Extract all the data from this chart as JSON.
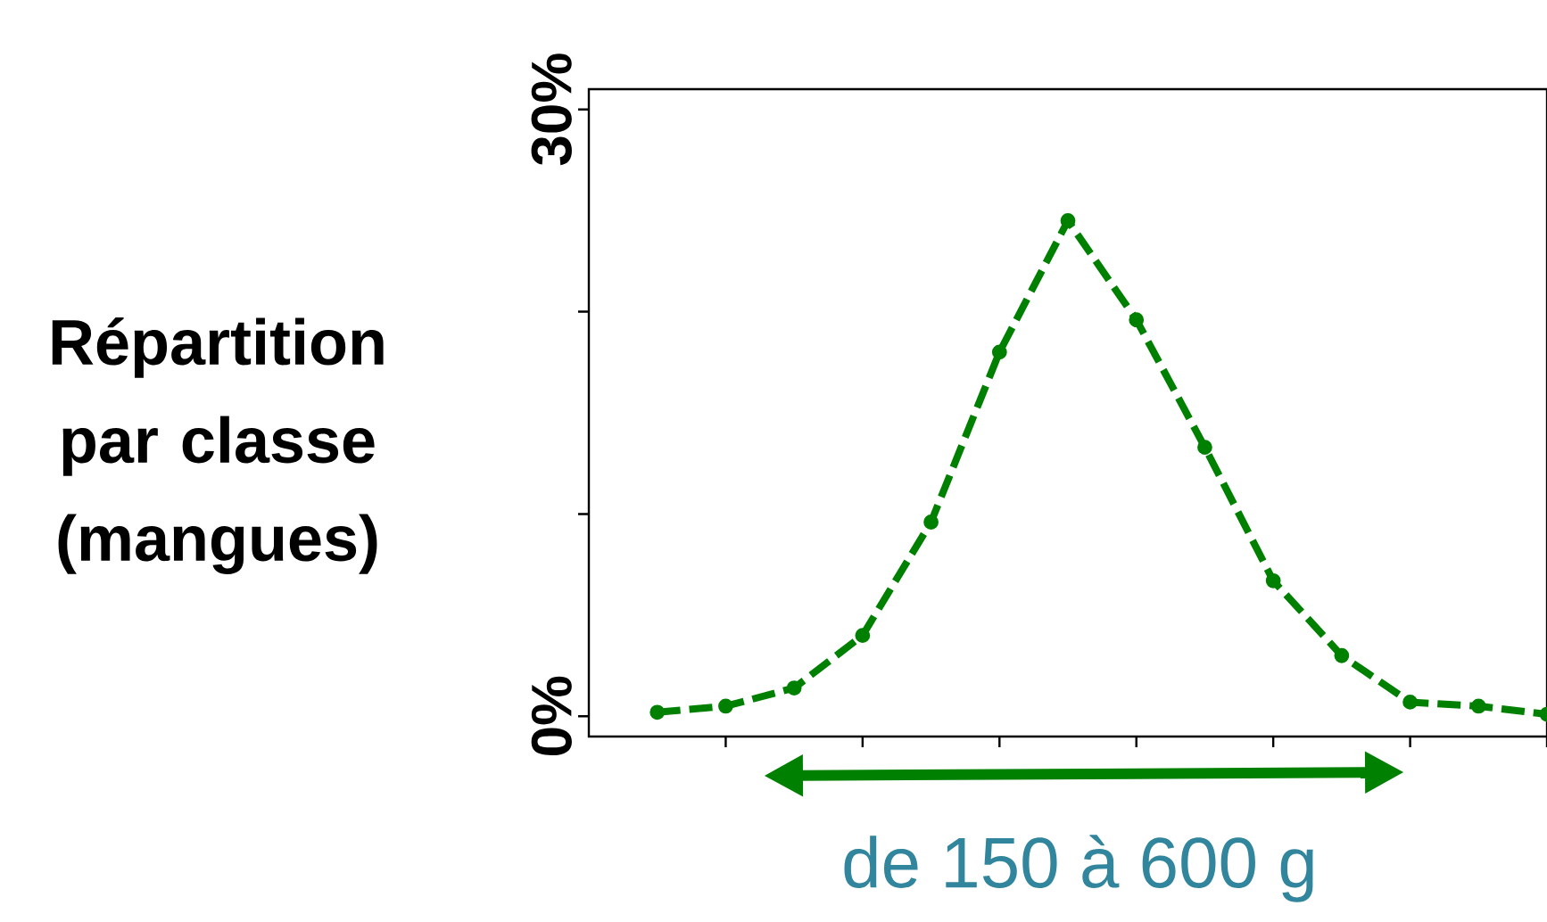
{
  "chart_data": {
    "type": "line",
    "ylabel": "Répartition par classe (mangues)",
    "categories": [
      null,
      null,
      null,
      null,
      null,
      null,
      null,
      null,
      null,
      null,
      null,
      null,
      null,
      null
    ],
    "series": [
      {
        "color": "#008000",
        "values": [
          0.2,
          0.5,
          1.4,
          4.0,
          9.6,
          18.0,
          24.5,
          19.6,
          13.3,
          6.7,
          3.0,
          0.7,
          0.5,
          0.1
        ]
      }
    ],
    "ylim": [
      -1,
      31
    ],
    "yticks": [
      {
        "value": 0,
        "label": "0%"
      },
      {
        "value": 10,
        "label": null
      },
      {
        "value": 20,
        "label": null
      },
      {
        "value": 30,
        "label": "30%"
      }
    ],
    "grid": false,
    "marker": "circle",
    "line_style": "dashed",
    "tick_labels": "y",
    "annotations": [
      "de 150 à 600 g"
    ]
  }
}
